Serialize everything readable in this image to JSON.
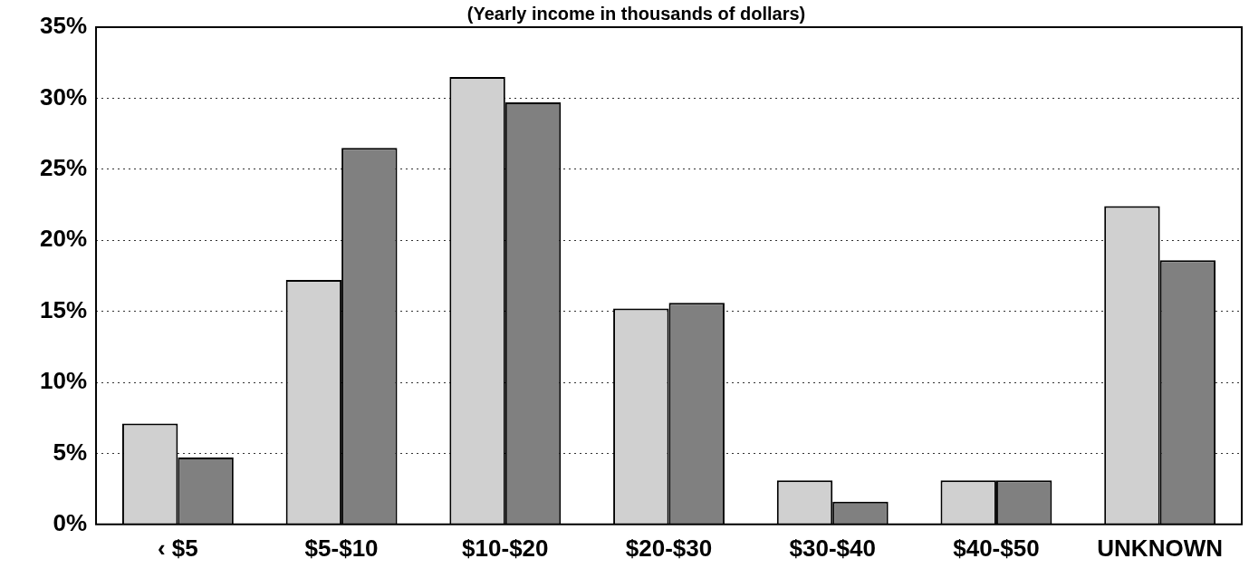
{
  "chart_data": {
    "type": "bar",
    "title": "(Yearly income in thousands of dollars)",
    "categories": [
      "‹ $5",
      "$5-$10",
      "$10-$20",
      "$20-$30",
      "$30-$40",
      "$40-$50",
      "UNKNOWN"
    ],
    "series": [
      {
        "color": "#d0d0d0",
        "values": [
          7.1,
          17.2,
          31.5,
          15.2,
          3.1,
          3.1,
          22.4
        ]
      },
      {
        "color": "#808080",
        "values": [
          4.7,
          26.5,
          29.7,
          15.6,
          1.6,
          3.1,
          18.6
        ]
      }
    ],
    "ylim": [
      0,
      35
    ],
    "yticks": [
      {
        "value": 0,
        "label": "0%"
      },
      {
        "value": 5,
        "label": "5%"
      },
      {
        "value": 10,
        "label": "10%"
      },
      {
        "value": 15,
        "label": "15%"
      },
      {
        "value": 20,
        "label": "20%"
      },
      {
        "value": 25,
        "label": "25%"
      },
      {
        "value": 30,
        "label": "30%"
      },
      {
        "value": 35,
        "label": "35%"
      }
    ],
    "grid": "y",
    "legend": false
  }
}
